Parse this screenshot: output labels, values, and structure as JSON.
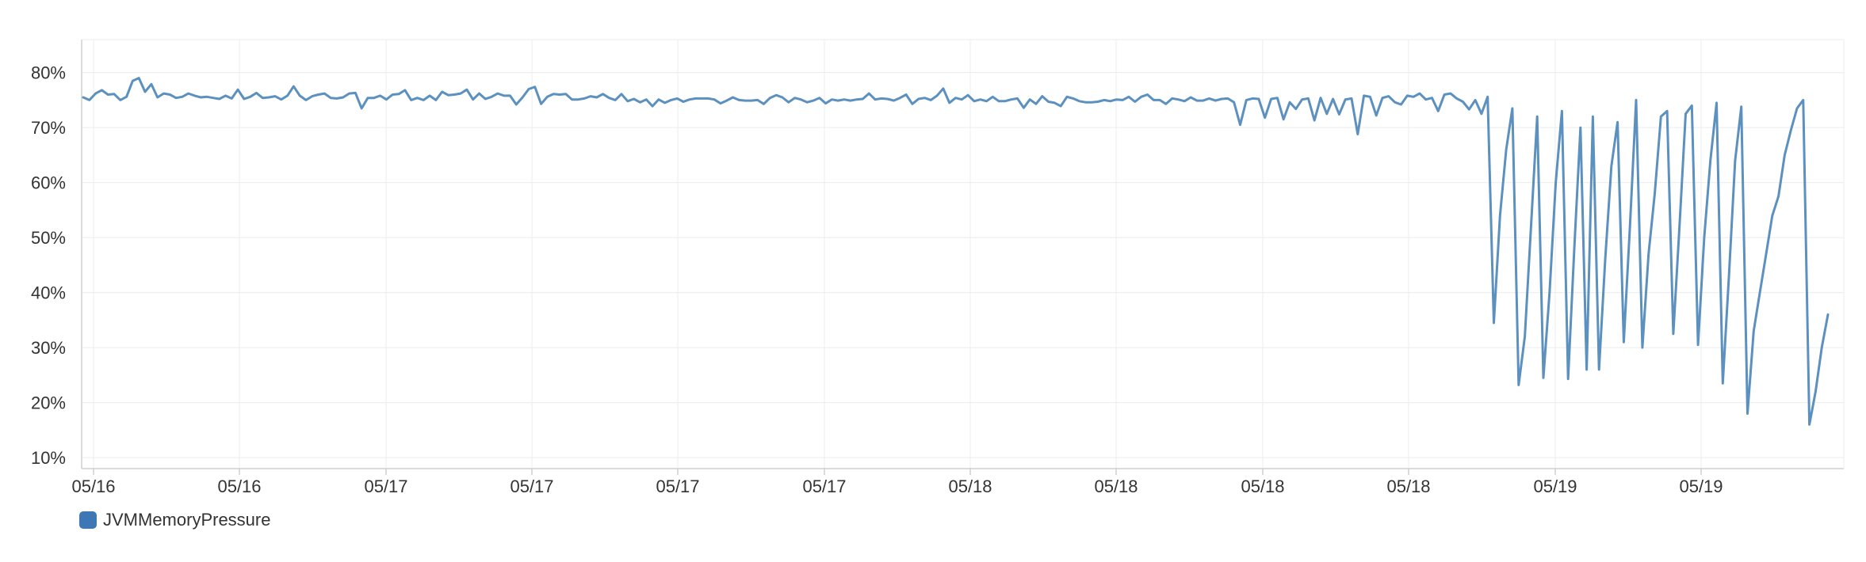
{
  "colors": {
    "series": "#5b90bf",
    "legend_swatch": "#3d77b5",
    "grid": "#ececec",
    "axis": "#cfcfcf",
    "text": "#333333"
  },
  "chart_data": {
    "type": "line",
    "title": "",
    "xlabel": "",
    "ylabel": "",
    "ylim": [
      8,
      86
    ],
    "grid": true,
    "legend_placement": "bottom-left",
    "y_ticks": [
      10,
      20,
      30,
      40,
      50,
      60,
      70,
      80
    ],
    "y_tick_labels": [
      "10%",
      "20%",
      "30%",
      "40%",
      "50%",
      "60%",
      "70%",
      "80%"
    ],
    "x_tick_labels": [
      "05/16",
      "05/16",
      "05/17",
      "05/17",
      "05/17",
      "05/17",
      "05/18",
      "05/18",
      "05/18",
      "05/18",
      "05/19",
      "05/19"
    ],
    "series": [
      {
        "name": "JVMMemoryPressure",
        "values": [
          75.5,
          75,
          76.2,
          76.8,
          76,
          76.1,
          75,
          75.6,
          78.5,
          79,
          76.5,
          77.9,
          75.5,
          76.2,
          76,
          75.4,
          75.6,
          76.2,
          75.8,
          75.5,
          75.6,
          75.4,
          75.2,
          75.8,
          75.3,
          76.9,
          75.2,
          75.6,
          76.3,
          75.4,
          75.5,
          75.7,
          75.1,
          75.8,
          77.5,
          75.8,
          75,
          75.7,
          76,
          76.2,
          75.4,
          75.3,
          75.5,
          76.2,
          76.3,
          73.5,
          75.4,
          75.4,
          75.8,
          75.1,
          76,
          76.1,
          76.8,
          75,
          75.4,
          75,
          75.8,
          75,
          76.5,
          75.9,
          76,
          76.2,
          76.9,
          75.1,
          76.2,
          75.2,
          75.6,
          76.2,
          75.8,
          75.8,
          74.2,
          75.5,
          77,
          77.4,
          74.3,
          75.6,
          76.1,
          76,
          76.1,
          75.1,
          75.1,
          75.3,
          75.7,
          75.5,
          76.1,
          75.4,
          75,
          76.1,
          74.8,
          75.2,
          74.6,
          75.1,
          73.9,
          75.1,
          74.5,
          75,
          75.3,
          74.7,
          75.1,
          75.3,
          75.3,
          75.3,
          75.1,
          74.4,
          74.9,
          75.5,
          75,
          74.9,
          74.9,
          75,
          74.3,
          75.4,
          75.9,
          75.5,
          74.6,
          75.4,
          75.1,
          74.6,
          74.9,
          75.4,
          74.4,
          75.1,
          74.9,
          75.1,
          74.9,
          75.1,
          75.2,
          76.2,
          75.1,
          75.3,
          75.2,
          74.9,
          75.4,
          76,
          74.3,
          75.2,
          75.4,
          75,
          75.8,
          77.1,
          74.5,
          75.4,
          75.1,
          75.9,
          74.8,
          75.1,
          74.8,
          75.6,
          74.8,
          74.8,
          75.1,
          75.3,
          73.6,
          75.1,
          74.3,
          75.7,
          74.7,
          74.5,
          73.9,
          75.6,
          75.3,
          74.8,
          74.6,
          74.6,
          74.7,
          75,
          74.8,
          75.1,
          75,
          75.6,
          74.7,
          75.6,
          76,
          75,
          75,
          74.3,
          75.3,
          75.1,
          74.8,
          75.5,
          74.9,
          74.9,
          75.3,
          74.9,
          75.2,
          75.3,
          74.6,
          70.5,
          75,
          75.3,
          75.2,
          71.8,
          75.2,
          75.4,
          71.5,
          74.6,
          73.4,
          75.1,
          75.3,
          71.3,
          75.4,
          72.5,
          75.2,
          72.4,
          75.1,
          75.3,
          68.8,
          75.8,
          75.6,
          72.2,
          75.4,
          75.7,
          74.6,
          74.2,
          75.8,
          75.6,
          76.2,
          75.1,
          75.4,
          73,
          76,
          76.2,
          75.3,
          74.7,
          73.3,
          75,
          72.5,
          75.6,
          34.5,
          54,
          66,
          73.5,
          23.2,
          32,
          52,
          72,
          24.5,
          40,
          60,
          73,
          24.3,
          48,
          70,
          26,
          72,
          26,
          46,
          63,
          71,
          31,
          52,
          75,
          30,
          47,
          58,
          72,
          73,
          32.5,
          52,
          72.5,
          74,
          30.5,
          50,
          64,
          74.5,
          23.5,
          43,
          64,
          73.8,
          18,
          33,
          40,
          47,
          54,
          57.5,
          65,
          69.5,
          73.5,
          75,
          16,
          22,
          30,
          36
        ]
      }
    ]
  }
}
